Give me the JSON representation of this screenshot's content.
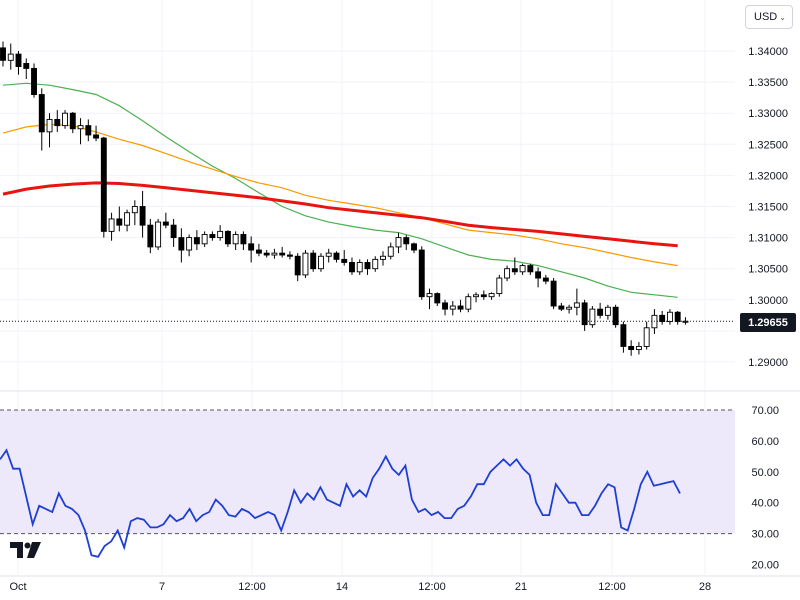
{
  "currency_selector": {
    "label": "USD",
    "chevron_icon": "chevron-down-icon"
  },
  "last_price_label": "1.29655",
  "brand_icon": "tradingview-logo-icon",
  "colors": {
    "candle_up": "#ffffff",
    "candle_down": "#000000",
    "candle_outline": "#000000",
    "ma_short": "#4caf50",
    "ma_mid": "#ff9800",
    "ma_long": "#e8140f",
    "rsi_line": "#1f3fd1",
    "rsi_band": "#ede9fb",
    "rsi_bounds": "#555555"
  },
  "chart_data": [
    {
      "type": "candlestick",
      "title": "",
      "y_axis": {
        "ticks": [
          "1.34000",
          "1.33500",
          "1.33000",
          "1.32500",
          "1.32000",
          "1.31500",
          "1.31000",
          "1.30500",
          "1.30000",
          "1.29500",
          "1.29000"
        ],
        "ylim": [
          1.288,
          1.3435
        ]
      },
      "x_axis": {
        "ticks": [
          "Oct",
          "7",
          "12:00",
          "14",
          "12:00",
          "21",
          "12:00",
          "28"
        ]
      },
      "grid": true,
      "last_price": 1.29655,
      "candles": [
        [
          1.3405,
          1.3415,
          1.3375,
          1.3385
        ],
        [
          1.3385,
          1.3412,
          1.337,
          1.3395
        ],
        [
          1.3395,
          1.34,
          1.3362,
          1.3375
        ],
        [
          1.338,
          1.3388,
          1.3355,
          1.3372
        ],
        [
          1.3372,
          1.338,
          1.3325,
          1.333
        ],
        [
          1.333,
          1.334,
          1.324,
          1.327
        ],
        [
          1.327,
          1.33,
          1.3245,
          1.329
        ],
        [
          1.329,
          1.3305,
          1.327,
          1.328
        ],
        [
          1.328,
          1.3305,
          1.3275,
          1.33
        ],
        [
          1.33,
          1.3302,
          1.3268,
          1.3275
        ],
        [
          1.3275,
          1.3292,
          1.325,
          1.328
        ],
        [
          1.328,
          1.329,
          1.3255,
          1.3265
        ],
        [
          1.3265,
          1.328,
          1.3255,
          1.326
        ],
        [
          1.326,
          1.3262,
          1.31,
          1.311
        ],
        [
          1.311,
          1.314,
          1.3095,
          1.313
        ],
        [
          1.313,
          1.315,
          1.311,
          1.312
        ],
        [
          1.312,
          1.3145,
          1.311,
          1.314
        ],
        [
          1.314,
          1.316,
          1.312,
          1.315
        ],
        [
          1.315,
          1.3175,
          1.31,
          1.312
        ],
        [
          1.312,
          1.313,
          1.3075,
          1.3085
        ],
        [
          1.3085,
          1.313,
          1.308,
          1.3125
        ],
        [
          1.3125,
          1.314,
          1.3115,
          1.312
        ],
        [
          1.312,
          1.313,
          1.3085,
          1.31
        ],
        [
          1.31,
          1.3115,
          1.306,
          1.308
        ],
        [
          1.308,
          1.3105,
          1.307,
          1.31
        ],
        [
          1.31,
          1.3112,
          1.308,
          1.309
        ],
        [
          1.309,
          1.311,
          1.3085,
          1.3105
        ],
        [
          1.3105,
          1.311,
          1.3095,
          1.31
        ],
        [
          1.31,
          1.312,
          1.3095,
          1.311
        ],
        [
          1.311,
          1.3112,
          1.3085,
          1.309
        ],
        [
          1.309,
          1.311,
          1.308,
          1.3105
        ],
        [
          1.3105,
          1.311,
          1.308,
          1.309
        ],
        [
          1.309,
          1.3102,
          1.306,
          1.308
        ],
        [
          1.308,
          1.309,
          1.307,
          1.3075
        ],
        [
          1.3075,
          1.308,
          1.3068,
          1.3072
        ],
        [
          1.3072,
          1.3082,
          1.3066,
          1.3075
        ],
        [
          1.3075,
          1.3085,
          1.3068,
          1.3072
        ],
        [
          1.3072,
          1.3078,
          1.3065,
          1.307
        ],
        [
          1.307,
          1.3075,
          1.303,
          1.304
        ],
        [
          1.304,
          1.308,
          1.3035,
          1.3075
        ],
        [
          1.3075,
          1.308,
          1.3045,
          1.305
        ],
        [
          1.305,
          1.3075,
          1.3045,
          1.307
        ],
        [
          1.307,
          1.3082,
          1.306,
          1.3075
        ],
        [
          1.3075,
          1.3078,
          1.306,
          1.3065
        ],
        [
          1.3065,
          1.308,
          1.3055,
          1.306
        ],
        [
          1.306,
          1.3068,
          1.304,
          1.3045
        ],
        [
          1.3045,
          1.3065,
          1.304,
          1.306
        ],
        [
          1.306,
          1.3065,
          1.304,
          1.305
        ],
        [
          1.305,
          1.307,
          1.3045,
          1.3065
        ],
        [
          1.3065,
          1.3078,
          1.3055,
          1.307
        ],
        [
          1.307,
          1.3092,
          1.3065,
          1.3085
        ],
        [
          1.3085,
          1.3108,
          1.3075,
          1.31
        ],
        [
          1.31,
          1.3104,
          1.308,
          1.309
        ],
        [
          1.309,
          1.3092,
          1.3075,
          1.308
        ],
        [
          1.308,
          1.3086,
          1.3,
          1.3005
        ],
        [
          1.3005,
          1.3018,
          1.2985,
          1.301
        ],
        [
          1.301,
          1.3012,
          1.299,
          1.2995
        ],
        [
          1.2995,
          1.3,
          1.2975,
          1.2985
        ],
        [
          1.2985,
          1.2998,
          1.2975,
          1.299
        ],
        [
          1.299,
          1.3,
          1.298,
          1.2985
        ],
        [
          1.2985,
          1.301,
          1.298,
          1.3005
        ],
        [
          1.3005,
          1.3012,
          1.2996,
          1.3008
        ],
        [
          1.3008,
          1.3015,
          1.3,
          1.3005
        ],
        [
          1.3005,
          1.3012,
          1.3,
          1.301
        ],
        [
          1.301,
          1.304,
          1.3005,
          1.3035
        ],
        [
          1.3035,
          1.3055,
          1.303,
          1.305
        ],
        [
          1.305,
          1.3068,
          1.304,
          1.3045
        ],
        [
          1.3045,
          1.3058,
          1.304,
          1.3055
        ],
        [
          1.3055,
          1.3058,
          1.304,
          1.3045
        ],
        [
          1.3045,
          1.3052,
          1.302,
          1.3035
        ],
        [
          1.3035,
          1.304,
          1.3025,
          1.303
        ],
        [
          1.303,
          1.3035,
          1.2985,
          1.299
        ],
        [
          1.299,
          1.2995,
          1.2982,
          1.2985
        ],
        [
          1.2985,
          1.2992,
          1.2978,
          1.2988
        ],
        [
          1.2988,
          1.3018,
          1.2975,
          1.2995
        ],
        [
          1.2995,
          1.3,
          1.295,
          1.296
        ],
        [
          1.296,
          1.299,
          1.2955,
          1.2985
        ],
        [
          1.2985,
          1.2995,
          1.297,
          1.2975
        ],
        [
          1.2975,
          1.2992,
          1.2968,
          1.2988
        ],
        [
          1.2988,
          1.2992,
          1.2955,
          1.296
        ],
        [
          1.296,
          1.2965,
          1.2915,
          1.2925
        ],
        [
          1.2925,
          1.2935,
          1.291,
          1.292
        ],
        [
          1.292,
          1.2932,
          1.2912,
          1.2925
        ],
        [
          1.2925,
          1.2965,
          1.292,
          1.2955
        ],
        [
          1.2955,
          1.2985,
          1.2945,
          1.2975
        ],
        [
          1.2975,
          1.2982,
          1.296,
          1.2965
        ],
        [
          1.2965,
          1.2985,
          1.296,
          1.298
        ],
        [
          1.298,
          1.2982,
          1.296,
          1.2965
        ],
        [
          1.2965,
          1.2972,
          1.296,
          1.29655
        ]
      ],
      "moving_averages": [
        {
          "color_key": "ma_short",
          "values": [
            [
              0,
              1.3345
            ],
            [
              3,
              1.3348
            ],
            [
              6,
              1.3345
            ],
            [
              9,
              1.3338
            ],
            [
              12,
              1.333
            ],
            [
              15,
              1.3312
            ],
            [
              18,
              1.3288
            ],
            [
              21,
              1.3262
            ],
            [
              24,
              1.3238
            ],
            [
              27,
              1.3215
            ],
            [
              30,
              1.3195
            ],
            [
              33,
              1.3172
            ],
            [
              36,
              1.315
            ],
            [
              39,
              1.3135
            ],
            [
              42,
              1.3125
            ],
            [
              45,
              1.3118
            ],
            [
              48,
              1.3112
            ],
            [
              51,
              1.3108
            ],
            [
              54,
              1.3098
            ],
            [
              57,
              1.3085
            ],
            [
              60,
              1.3072
            ],
            [
              63,
              1.3065
            ],
            [
              66,
              1.3062
            ],
            [
              69,
              1.3055
            ],
            [
              72,
              1.3045
            ],
            [
              75,
              1.3035
            ],
            [
              78,
              1.3022
            ],
            [
              81,
              1.3012
            ],
            [
              84,
              1.3008
            ],
            [
              87,
              1.3004
            ]
          ]
        },
        {
          "color_key": "ma_mid",
          "values": [
            [
              0,
              1.3268
            ],
            [
              3,
              1.3278
            ],
            [
              6,
              1.3282
            ],
            [
              9,
              1.328
            ],
            [
              12,
              1.327
            ],
            [
              15,
              1.3258
            ],
            [
              18,
              1.3248
            ],
            [
              21,
              1.3235
            ],
            [
              24,
              1.3222
            ],
            [
              27,
              1.321
            ],
            [
              30,
              1.3198
            ],
            [
              33,
              1.3188
            ],
            [
              36,
              1.318
            ],
            [
              39,
              1.3168
            ],
            [
              42,
              1.316
            ],
            [
              45,
              1.3154
            ],
            [
              48,
              1.3148
            ],
            [
              51,
              1.314
            ],
            [
              54,
              1.3132
            ],
            [
              57,
              1.3122
            ],
            [
              60,
              1.3112
            ],
            [
              63,
              1.3108
            ],
            [
              66,
              1.3104
            ],
            [
              69,
              1.3098
            ],
            [
              72,
              1.309
            ],
            [
              75,
              1.3084
            ],
            [
              78,
              1.3076
            ],
            [
              81,
              1.3068
            ],
            [
              84,
              1.3061
            ],
            [
              87,
              1.3055
            ]
          ]
        },
        {
          "color_key": "ma_long",
          "values": [
            [
              0,
              1.317
            ],
            [
              3,
              1.3178
            ],
            [
              6,
              1.3183
            ],
            [
              9,
              1.3186
            ],
            [
              12,
              1.3188
            ],
            [
              15,
              1.3187
            ],
            [
              18,
              1.3184
            ],
            [
              21,
              1.318
            ],
            [
              24,
              1.3176
            ],
            [
              27,
              1.3172
            ],
            [
              30,
              1.3168
            ],
            [
              33,
              1.3164
            ],
            [
              36,
              1.3159
            ],
            [
              39,
              1.3154
            ],
            [
              42,
              1.3148
            ],
            [
              45,
              1.3144
            ],
            [
              48,
              1.314
            ],
            [
              51,
              1.3136
            ],
            [
              54,
              1.3132
            ],
            [
              57,
              1.3126
            ],
            [
              60,
              1.312
            ],
            [
              63,
              1.3116
            ],
            [
              66,
              1.3113
            ],
            [
              69,
              1.311
            ],
            [
              72,
              1.3106
            ],
            [
              75,
              1.3102
            ],
            [
              78,
              1.3098
            ],
            [
              81,
              1.3094
            ],
            [
              84,
              1.309
            ],
            [
              87,
              1.3087
            ]
          ]
        }
      ]
    },
    {
      "type": "line",
      "title": "",
      "y_axis": {
        "ticks": [
          "70.00",
          "60.00",
          "50.00",
          "40.00",
          "30.00",
          "20.00"
        ],
        "ylim": [
          17,
          75
        ]
      },
      "band": [
        30,
        70
      ],
      "grid": true,
      "series": [
        {
          "values": [
            54,
            57,
            51,
            51,
            42,
            33,
            39,
            38,
            37,
            43,
            39,
            38,
            36,
            31,
            23,
            22.5,
            26,
            27.5,
            31,
            25.5,
            34,
            35,
            34.5,
            32,
            32,
            33,
            36,
            34,
            35,
            38,
            34,
            36,
            37,
            41,
            39,
            36,
            35.5,
            38,
            37,
            35,
            36,
            37,
            36,
            31,
            37,
            44,
            40,
            43,
            41,
            45,
            41,
            40,
            39,
            46,
            42,
            44,
            42,
            48,
            51,
            55,
            51,
            49,
            52,
            41,
            37,
            38,
            36,
            37,
            35,
            35,
            38,
            39,
            42,
            46,
            46,
            50,
            52,
            54,
            52,
            54,
            51,
            49,
            40,
            36,
            36,
            46,
            43,
            40,
            40,
            36,
            36,
            39,
            43,
            46,
            45,
            32,
            31,
            38,
            46,
            50,
            45.5,
            46,
            46.5,
            47,
            43
          ]
        }
      ]
    }
  ]
}
